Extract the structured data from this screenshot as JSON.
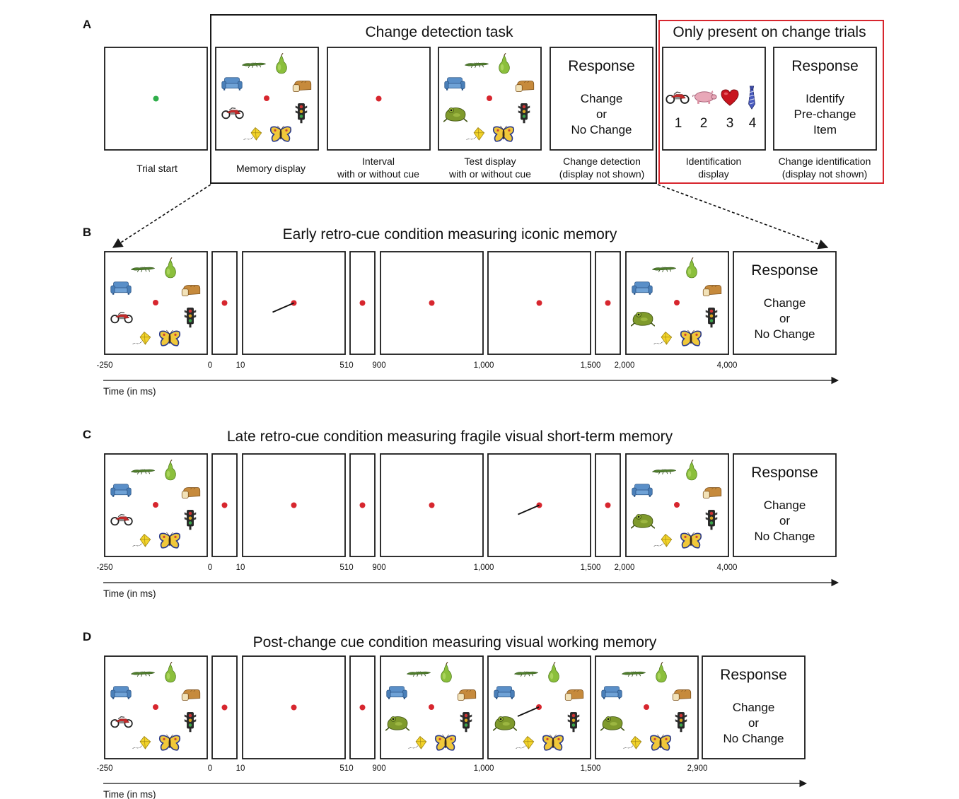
{
  "panel_a": {
    "letter": "A",
    "task_title": "Change detection task",
    "change_only_title": "Only present on change trials",
    "captions": {
      "trial_start": "Trial start",
      "memory_display": "Memory display",
      "interval": [
        "Interval",
        "with or without cue"
      ],
      "test_display": [
        "Test display",
        "with or without cue"
      ],
      "change_detection": [
        "Change detection",
        "(display not shown)"
      ],
      "identification_display": [
        "Identification",
        "display"
      ],
      "change_identification": [
        "Change identification",
        "(display not shown)"
      ]
    },
    "response_box": {
      "title": "Response",
      "lines": [
        "Change",
        "or",
        "No Change"
      ]
    },
    "identify_box": {
      "title": "Response",
      "lines": [
        "Identify",
        "Pre-change",
        "Item"
      ]
    },
    "id_numbers": [
      "1",
      "2",
      "3",
      "4"
    ]
  },
  "panel_b": {
    "letter": "B",
    "title": "Early retro-cue condition measuring iconic memory",
    "ticks": [
      "-250",
      "0",
      "10",
      "510",
      "900",
      "1,000",
      "1,500",
      "2,000",
      "4,000"
    ],
    "time_label": "Time (in ms)",
    "response": {
      "title": "Response",
      "lines": [
        "Change",
        "or",
        "No Change"
      ]
    }
  },
  "panel_c": {
    "letter": "C",
    "title": "Late retro-cue condition measuring fragile visual short-term memory",
    "ticks": [
      "-250",
      "0",
      "10",
      "510",
      "900",
      "1,000",
      "1,500",
      "2,000",
      "4,000"
    ],
    "time_label": "Time (in ms)",
    "response": {
      "title": "Response",
      "lines": [
        "Change",
        "or",
        "No Change"
      ]
    }
  },
  "panel_d": {
    "letter": "D",
    "title": "Post-change cue condition measuring visual working memory",
    "ticks": [
      "-250",
      "0",
      "10",
      "510",
      "900",
      "1,000",
      "1,500",
      "2,900"
    ],
    "time_label": "Time (in ms)",
    "response": {
      "title": "Response",
      "lines": [
        "Change",
        "or",
        "No Change"
      ]
    }
  },
  "colors": {
    "fixation_red": "#d7262e",
    "fixation_green": "#2fae4a",
    "change_trials_border": "#d7262e",
    "frame": "#1a1a1a"
  },
  "icons": [
    "crocodile-icon",
    "pear-icon",
    "sofa-icon",
    "bread-icon",
    "motorcycle-icon",
    "traffic-light-icon",
    "kite-icon",
    "butterfly-icon",
    "frog-icon",
    "pig-icon",
    "heart-icon",
    "tie-icon"
  ]
}
